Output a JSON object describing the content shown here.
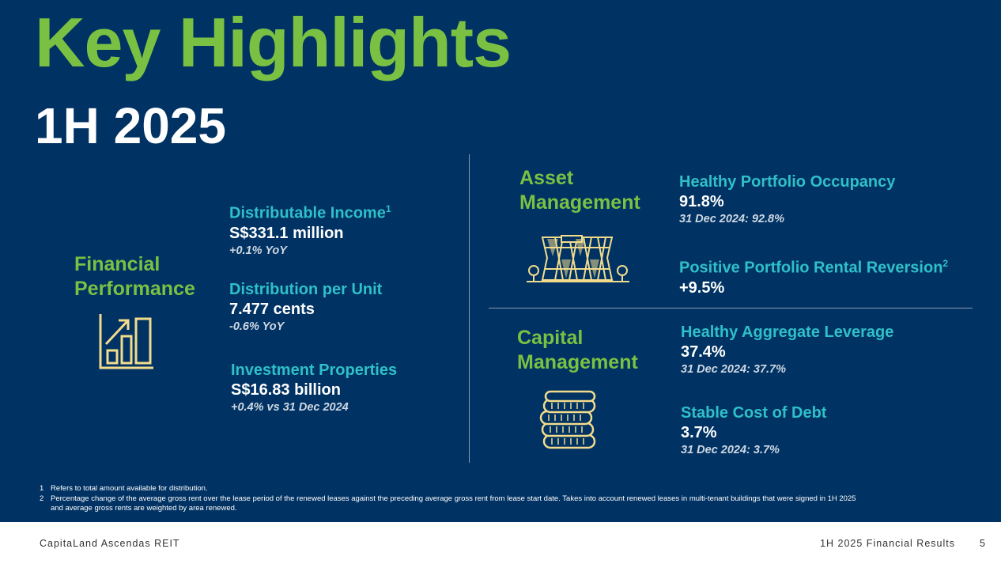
{
  "header": {
    "title": "Key Highlights",
    "subtitle": "1H 2025"
  },
  "colors": {
    "background": "#003263",
    "accent_green": "#7ac143",
    "accent_teal": "#2fc0c8",
    "icon_gold": "#f2dc8c"
  },
  "financial": {
    "heading_line1": "Financial",
    "heading_line2": "Performance",
    "icon": "bar-chart-growth-icon",
    "metrics": [
      {
        "label": "Distributable Income",
        "sup": "1",
        "value": "S$331.1 million",
        "note": "+0.1% YoY"
      },
      {
        "label": "Distribution per Unit",
        "value": "7.477 cents",
        "note": "-0.6% YoY"
      },
      {
        "label": "Investment Properties",
        "value": "S$16.83 billion",
        "note": "+0.4% vs 31 Dec 2024"
      }
    ]
  },
  "asset": {
    "heading_line1": "Asset",
    "heading_line2": "Management",
    "icon": "building-with-trees-icon",
    "metrics": [
      {
        "label": "Healthy Portfolio Occupancy",
        "value": "91.8%",
        "note": "31 Dec 2024: 92.8%"
      },
      {
        "label": "Positive Portfolio Rental Reversion",
        "sup": "2",
        "value": "+9.5%"
      }
    ]
  },
  "capital": {
    "heading_line1": "Capital",
    "heading_line2": "Management",
    "icon": "coin-stack-icon",
    "metrics": [
      {
        "label": "Healthy Aggregate Leverage",
        "value": "37.4%",
        "note": "31 Dec 2024: 37.7%"
      },
      {
        "label": "Stable Cost of Debt",
        "value": "3.7%",
        "note": "31 Dec 2024: 3.7%"
      }
    ]
  },
  "footnotes": [
    {
      "num": "1",
      "text": "Refers to total amount available for distribution."
    },
    {
      "num": "2",
      "text": "Percentage change of the average gross rent over the lease period of the renewed leases against the preceding average gross rent from lease start date. Takes into account renewed leases in multi-tenant buildings that were signed in 1H 2025",
      "text2": "and average gross rents are weighted by area renewed."
    }
  ],
  "footer": {
    "brand": "CapitaLand Ascendas REIT",
    "deck": "1H 2025 Financial Results",
    "page": "5"
  }
}
